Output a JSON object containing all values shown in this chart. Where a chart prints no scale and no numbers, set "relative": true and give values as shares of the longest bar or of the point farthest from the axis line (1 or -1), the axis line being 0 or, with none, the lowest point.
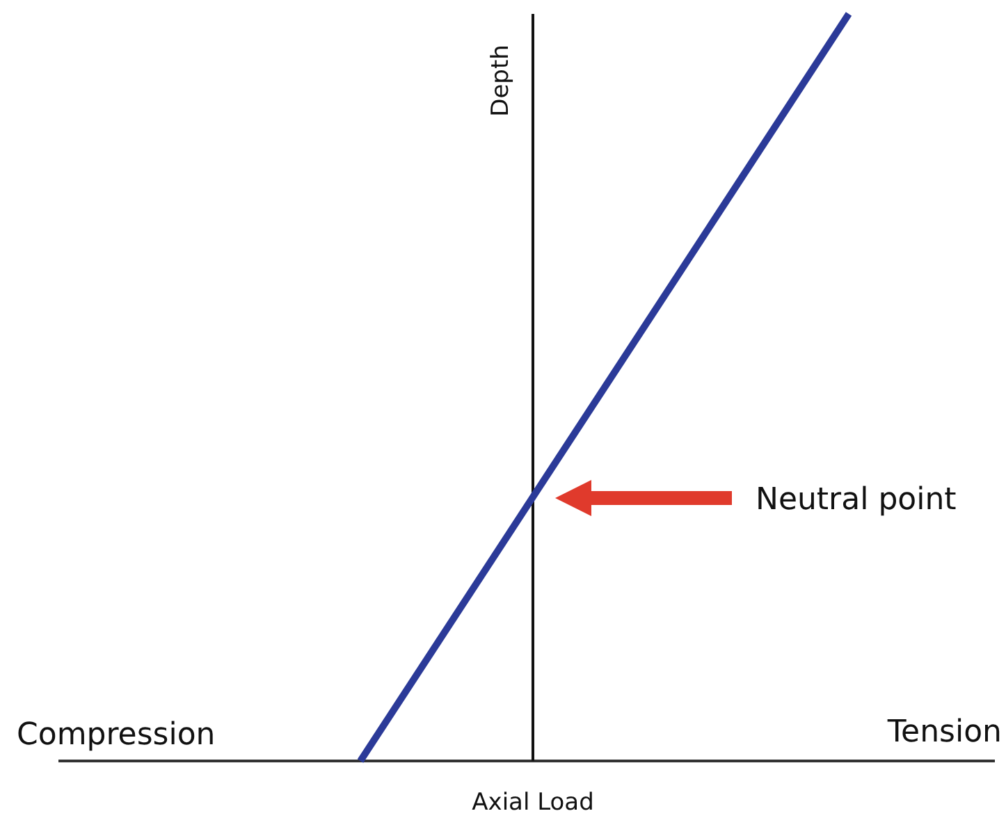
{
  "chart_data": {
    "type": "line",
    "relative": true,
    "xlabel": "Axial Load",
    "ylabel": "Depth",
    "categories": [
      null,
      null
    ],
    "series": [
      {
        "color": "#2b3a98",
        "values": [
          0,
          1
        ]
      }
    ],
    "annotations": [
      "Compression",
      "Tension",
      "Neutral point"
    ]
  }
}
